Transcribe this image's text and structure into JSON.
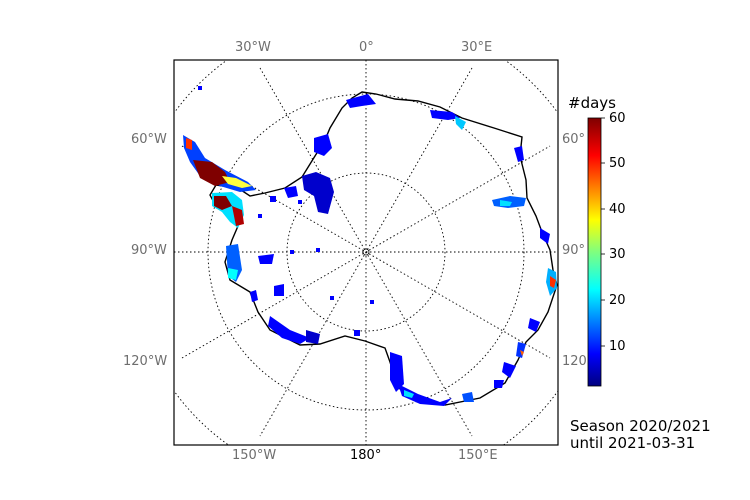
{
  "map": {
    "lon_labels_top": [
      "30°W",
      "0°",
      "30°E"
    ],
    "lon_labels_bottom": [
      "150°W",
      "180°",
      "150°E"
    ],
    "lat_labels_left": [
      "60°W",
      "90°W",
      "120°W"
    ],
    "lat_labels_right": [
      "60°",
      "90°",
      "120"
    ]
  },
  "colorbar": {
    "title": "#days",
    "ticks": [
      "60",
      "50",
      "40",
      "30",
      "20",
      "10"
    ],
    "min": 0,
    "max": 60,
    "colors": [
      "#00007f",
      "#0000ff",
      "#007fff",
      "#00ffff",
      "#7fff7f",
      "#ffff00",
      "#ff7f00",
      "#ff0000",
      "#7f0000"
    ]
  },
  "caption": {
    "line1": "Season 2020/2021",
    "line2": "until 2021-03-31"
  }
}
